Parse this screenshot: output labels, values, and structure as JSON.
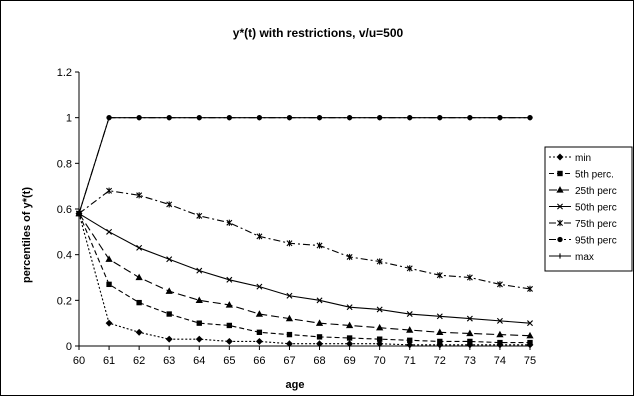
{
  "chart_data": {
    "type": "line",
    "title": "y*(t) with restrictions, v/u=500",
    "xlabel": "age",
    "ylabel": "percentiles of y*(t)",
    "xlim": [
      60,
      75
    ],
    "ylim": [
      0,
      1.2
    ],
    "x": [
      60,
      61,
      62,
      63,
      64,
      65,
      66,
      67,
      68,
      69,
      70,
      71,
      72,
      73,
      74,
      75
    ],
    "x_ticks": [
      "60",
      "61",
      "62",
      "63",
      "64",
      "65",
      "66",
      "67",
      "68",
      "69",
      "70",
      "71",
      "72",
      "73",
      "74",
      "75"
    ],
    "y_ticks": [
      "0",
      "0.2",
      "0.4",
      "0.6",
      "0.8",
      "1",
      "1.2"
    ],
    "grid": false,
    "legend_position": "right",
    "series": [
      {
        "name": "min",
        "marker": "diamond",
        "dash": "dot",
        "values": [
          0.58,
          0.1,
          0.06,
          0.03,
          0.03,
          0.02,
          0.02,
          0.01,
          0.01,
          0.01,
          0.01,
          0.005,
          0.005,
          0.005,
          0.005,
          0.005
        ]
      },
      {
        "name": "5th perc.",
        "marker": "square",
        "dash": "dash",
        "values": [
          0.58,
          0.27,
          0.19,
          0.14,
          0.1,
          0.09,
          0.06,
          0.05,
          0.04,
          0.035,
          0.03,
          0.025,
          0.02,
          0.02,
          0.015,
          0.015
        ]
      },
      {
        "name": "25th perc",
        "marker": "triangle",
        "dash": "longdash",
        "values": [
          0.58,
          0.38,
          0.3,
          0.24,
          0.2,
          0.18,
          0.14,
          0.12,
          0.1,
          0.09,
          0.08,
          0.07,
          0.06,
          0.055,
          0.05,
          0.045
        ]
      },
      {
        "name": "50th perc",
        "marker": "x",
        "dash": "solid",
        "values": [
          0.58,
          0.5,
          0.43,
          0.38,
          0.33,
          0.29,
          0.26,
          0.22,
          0.2,
          0.17,
          0.16,
          0.14,
          0.13,
          0.12,
          0.11,
          0.1
        ]
      },
      {
        "name": "75th perc",
        "marker": "asterisk",
        "dash": "dashdot",
        "values": [
          0.58,
          0.68,
          0.66,
          0.62,
          0.57,
          0.54,
          0.48,
          0.45,
          0.44,
          0.39,
          0.37,
          0.34,
          0.31,
          0.3,
          0.27,
          0.25
        ]
      },
      {
        "name": "95th perc",
        "marker": "circle",
        "dash": "dashdotdot",
        "values": [
          0.58,
          1.0,
          1.0,
          1.0,
          1.0,
          1.0,
          1.0,
          1.0,
          1.0,
          1.0,
          1.0,
          1.0,
          1.0,
          1.0,
          1.0,
          1.0
        ]
      },
      {
        "name": "max",
        "marker": "plus",
        "dash": "solid",
        "values": [
          0.58,
          1.0,
          1.0,
          1.0,
          1.0,
          1.0,
          1.0,
          1.0,
          1.0,
          1.0,
          1.0,
          1.0,
          1.0,
          1.0,
          1.0,
          1.0
        ]
      }
    ]
  }
}
